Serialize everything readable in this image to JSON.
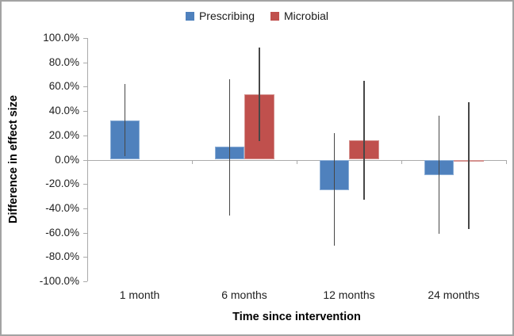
{
  "chart_data": {
    "type": "bar",
    "xlabel": "Time since intervention",
    "ylabel": "Difference in effect size",
    "categories": [
      "1 month",
      "6 months",
      "12 months",
      "24 months"
    ],
    "series": [
      {
        "name": "Prescribing",
        "color": "#4F81BD",
        "values": [
          32,
          10.5,
          -25,
          -12.5
        ],
        "ci_low": [
          3,
          -46,
          -71,
          -61
        ],
        "ci_high": [
          62,
          66,
          22,
          36
        ]
      },
      {
        "name": "Microbial",
        "color": "#C0504D",
        "values": [
          null,
          53.5,
          16,
          -1.5
        ],
        "ci_low": [
          null,
          15,
          -33,
          -57
        ],
        "ci_high": [
          null,
          92,
          65,
          47
        ]
      }
    ],
    "ylim": [
      -100,
      100
    ],
    "y_tick_labels": [
      "100.0%",
      "80.0%",
      "60.0%",
      "40.0%",
      "20.0%",
      "0.0%",
      "-20.0%",
      "-40.0%",
      "-60.0%",
      "-80.0%",
      "-100.0%"
    ],
    "y_tick_values": [
      100,
      80,
      60,
      40,
      20,
      0,
      -20,
      -40,
      -60,
      -80,
      -100
    ],
    "units": "percent",
    "grid": false,
    "error_bars": true,
    "legend_position": "top-center"
  }
}
